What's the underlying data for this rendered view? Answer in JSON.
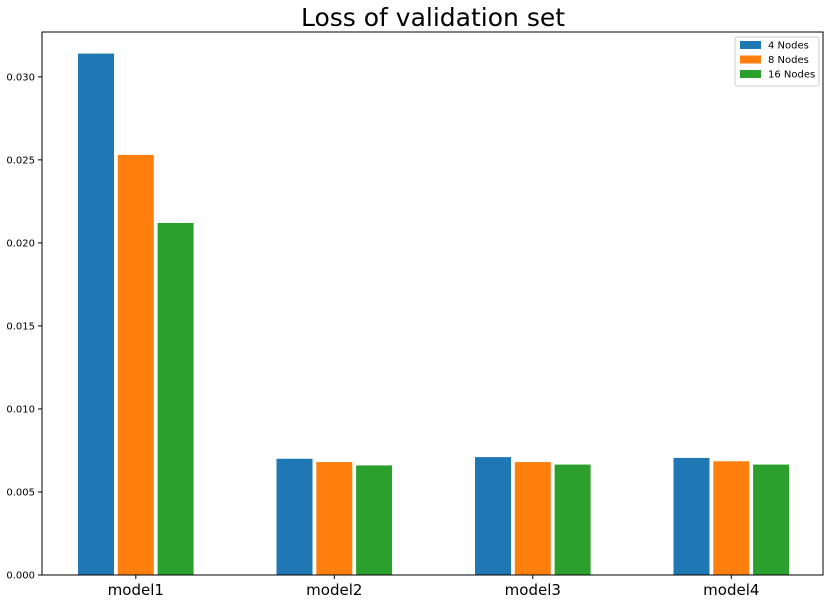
{
  "chart_data": {
    "type": "bar",
    "title": "Loss of validation set",
    "xlabel": "",
    "ylabel": "",
    "categories": [
      "model1",
      "model2",
      "model3",
      "model4"
    ],
    "series": [
      {
        "name": "4 Nodes",
        "color": "#1f77b4",
        "values": [
          0.0314,
          0.007,
          0.0071,
          0.00705
        ]
      },
      {
        "name": "8 Nodes",
        "color": "#ff7f0e",
        "values": [
          0.0253,
          0.0068,
          0.0068,
          0.00685
        ]
      },
      {
        "name": "16 Nodes",
        "color": "#2ca02c",
        "values": [
          0.0212,
          0.0066,
          0.00665,
          0.00665
        ]
      }
    ],
    "ylim": [
      0,
      0.0327
    ],
    "yticks": [
      "0.000",
      "0.005",
      "0.010",
      "0.015",
      "0.020",
      "0.025",
      "0.030"
    ],
    "ytick_values": [
      0.0,
      0.005,
      0.01,
      0.015,
      0.02,
      0.025,
      0.03
    ],
    "grid": false,
    "legend_position": "top-right"
  }
}
